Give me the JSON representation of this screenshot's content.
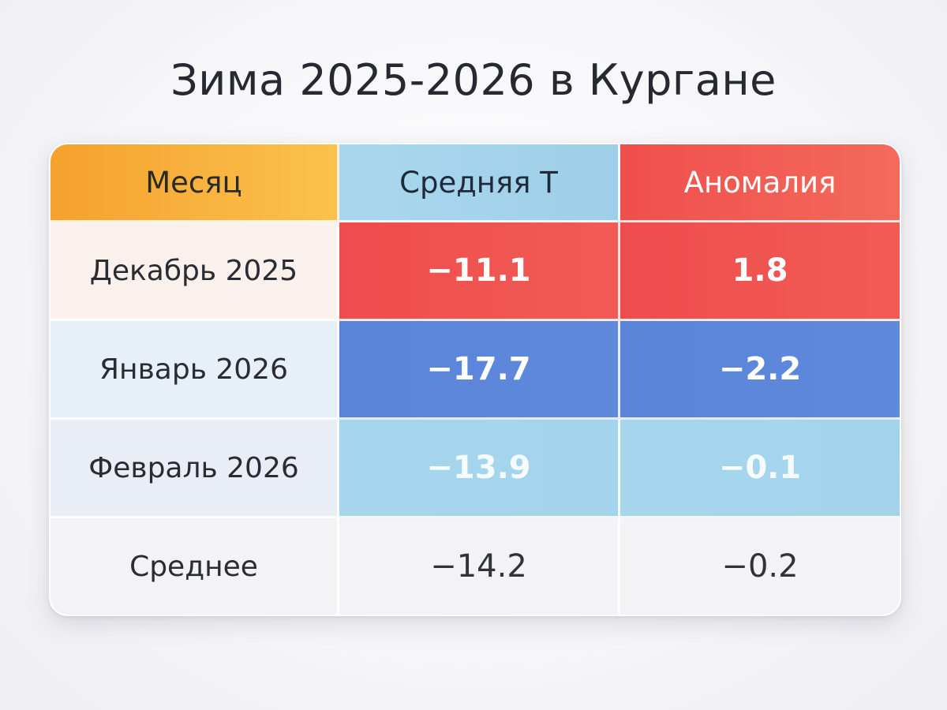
{
  "title": "Зима 2025-2026 в Кургане",
  "chart_data": {
    "type": "table",
    "title": "Зима 2025-2026 в Кургане",
    "columns": [
      "Месяц",
      "Средняя Т",
      "Аномалия"
    ],
    "rows": [
      {
        "month": "Декабрь 2025",
        "avg": "−11.1",
        "anomaly": "1.8"
      },
      {
        "month": "Январь 2026",
        "avg": "−17.7",
        "anomaly": "−2.2"
      },
      {
        "month": "Февраль 2026",
        "avg": "−13.9",
        "anomaly": "−0.1"
      },
      {
        "month": "Среднее",
        "avg": "−14.2",
        "anomaly": "−0.2"
      }
    ],
    "colors": {
      "header_month": "#f5a12e",
      "header_avg": "#a9d8ee",
      "header_anomaly": "#f04f4c",
      "warm": "#ee4d4d",
      "cold": "#5a84d8",
      "near_normal": "#a6d6ee"
    }
  }
}
